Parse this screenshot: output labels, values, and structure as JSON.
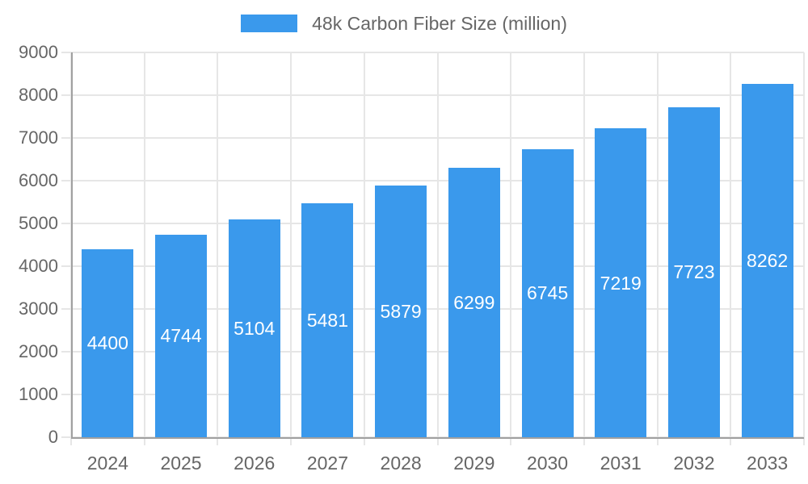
{
  "legend": {
    "label": "48k Carbon Fiber Size (million)"
  },
  "chart_data": {
    "type": "bar",
    "title": "",
    "categories": [
      "2024",
      "2025",
      "2026",
      "2027",
      "2028",
      "2029",
      "2030",
      "2031",
      "2032",
      "2033"
    ],
    "series": [
      {
        "name": "48k Carbon Fiber Size (million)",
        "values": [
          4400,
          4744,
          5104,
          5481,
          5879,
          6299,
          6745,
          7219,
          7723,
          8262
        ]
      }
    ],
    "xlabel": "",
    "ylabel": "",
    "ylim": [
      0,
      9000
    ],
    "y_tick_step": 1000,
    "grid": true,
    "legend_position": "top",
    "data_labels": "inside-center",
    "colors": {
      "bar": "#3A99EC",
      "grid": "#E6E6E6",
      "axis": "#A0A0A0",
      "tick_label": "#666666",
      "data_label": "#FFFFFF"
    }
  }
}
